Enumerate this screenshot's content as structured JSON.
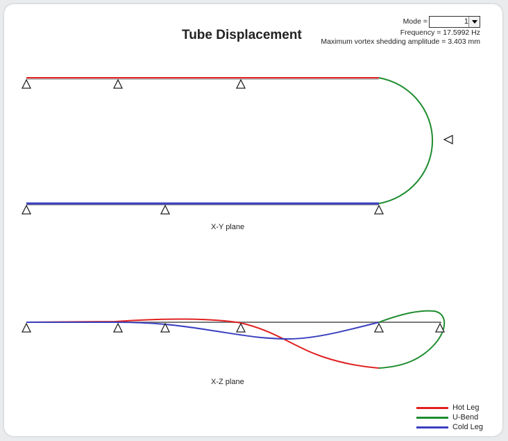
{
  "title": "Tube Displacement",
  "mode": {
    "label": "Mode =",
    "value": "1"
  },
  "frequency": "Frequency = 17.5992 Hz",
  "amplitude": "Maximum vortex shedding amplitude = 3.403 mm",
  "planes": {
    "xy": "X-Y plane",
    "xz": "X-Z plane"
  },
  "legend": [
    {
      "label": "Hot Leg",
      "color": "#e02020"
    },
    {
      "label": "U-Bend",
      "color": "#1e8c2e"
    },
    {
      "label": "Cold Leg",
      "color": "#3a3fc0"
    }
  ],
  "colors": {
    "hot_leg": "#e02020",
    "u_bend": "#1e8c2e",
    "cold_leg": "#3a3fc0",
    "axis": "#7a7a7a"
  },
  "icons": {
    "support": "support-triangle-icon",
    "dropdown": "chevron-down-icon"
  }
}
